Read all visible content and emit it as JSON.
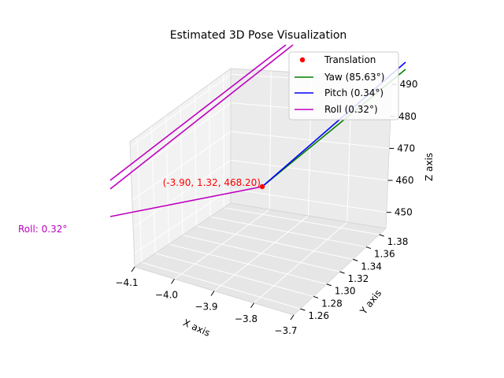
{
  "chart_data": {
    "type": "scatter",
    "projection": "3d",
    "title": "Estimated 3D Pose Visualization",
    "xlabel": "X axis",
    "ylabel": "Y axis",
    "zlabel": "Z axis",
    "x_ticks": [
      "−4.1",
      "−4.0",
      "−3.9",
      "−3.8",
      "−3.7"
    ],
    "y_ticks": [
      "1.26",
      "1.28",
      "1.30",
      "1.32",
      "1.34",
      "1.36",
      "1.38"
    ],
    "z_ticks": [
      "450",
      "460",
      "470",
      "480",
      "490"
    ],
    "xlim": [
      -4.1,
      -3.7
    ],
    "ylim": [
      1.25,
      1.39
    ],
    "zlim": [
      445,
      492
    ],
    "grid": true,
    "legend_position": "top-right",
    "point": {
      "x": -3.9,
      "y": 1.32,
      "z": 468.2,
      "label": "(-3.90, 1.32, 468.20)",
      "color": "#ff0000"
    },
    "series": [
      {
        "name": "Translation",
        "kind": "point",
        "color": "#ff0000"
      },
      {
        "name": "Yaw (85.63°)",
        "kind": "line",
        "angle_deg": 85.63,
        "color": "#008000"
      },
      {
        "name": "Pitch (0.34°)",
        "kind": "line",
        "angle_deg": 0.34,
        "color": "#0000ff"
      },
      {
        "name": "Roll (0.32°)",
        "kind": "line",
        "angle_deg": 0.32,
        "color": "#bf00bf"
      }
    ],
    "annotations": [
      {
        "text": "Roll: 0.32°",
        "color": "#bf00bf"
      }
    ]
  }
}
